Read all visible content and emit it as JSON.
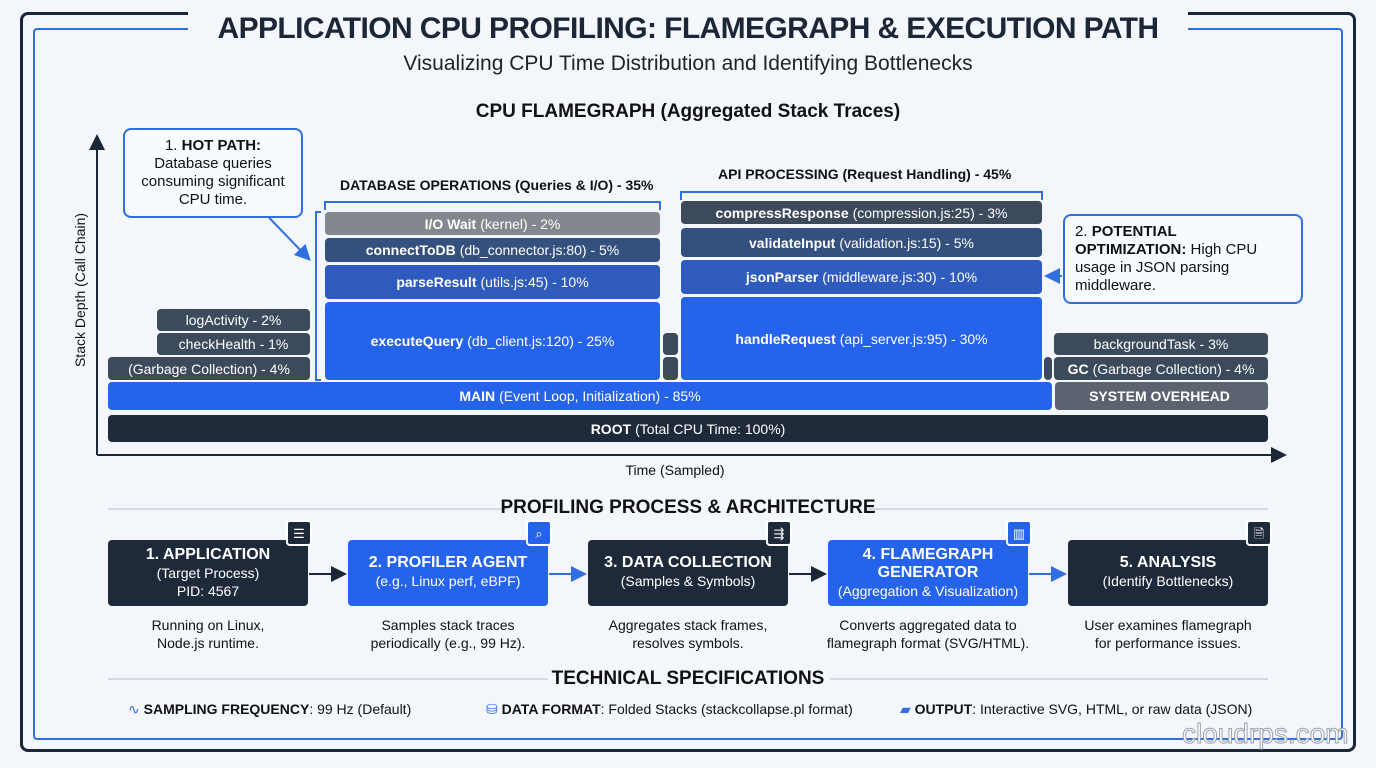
{
  "title": "APPLICATION CPU PROFILING: FLAMEGRAPH & EXECUTION PATH",
  "subtitle": "Visualizing CPU Time Distribution and Identifying Bottlenecks",
  "flamegraph": {
    "title": "CPU FLAMEGRAPH (Aggregated Stack Traces)",
    "y_axis": "Stack Depth (Call Chain)",
    "x_axis": "Time (Sampled)",
    "db_group": "DATABASE OPERATIONS (Queries & I/O) - 35%",
    "api_group": "API PROCESSING (Request Handling) - 45%",
    "frames": {
      "root": {
        "name": "ROOT",
        "detail": "(Total CPU Time: 100%)"
      },
      "main": {
        "name": "MAIN",
        "detail": "(Event Loop, Initialization) - 85%"
      },
      "sys": {
        "name": "SYSTEM OVERHEAD",
        "detail": ""
      },
      "gc_left": {
        "name": "",
        "detail": "(Garbage Collection) - 4%"
      },
      "check": {
        "name": "",
        "detail": "checkHealth - 1%"
      },
      "log": {
        "name": "",
        "detail": "logActivity - 2%"
      },
      "exec": {
        "name": "executeQuery",
        "detail": "(db_client.js:120) - 25%"
      },
      "parse": {
        "name": "parseResult",
        "detail": "(utils.js:45) - 10%"
      },
      "conn": {
        "name": "connectToDB",
        "detail": "(db_connector.js:80) - 5%"
      },
      "iowait": {
        "name": "I/O Wait",
        "detail": "(kernel) - 2%"
      },
      "handle": {
        "name": "handleRequest",
        "detail": "(api_server.js:95) - 30%"
      },
      "json": {
        "name": "jsonParser",
        "detail": "(middleware.js:30) - 10%"
      },
      "validate": {
        "name": "validateInput",
        "detail": "(validation.js:15) - 5%"
      },
      "compress": {
        "name": "compressResponse",
        "detail": "(compression.js:25) - 3%"
      },
      "bg": {
        "name": "",
        "detail": "backgroundTask - 3%"
      },
      "gc_right": {
        "name": "GC",
        "detail": "(Garbage Collection) - 4%"
      }
    },
    "callout1": {
      "bold": "HOT PATH:",
      "prefix": "1.",
      "text": "Database queries consuming significant CPU time."
    },
    "callout2": {
      "bold": "POTENTIAL OPTIMIZATION:",
      "prefix": "2.",
      "text": "High CPU usage in JSON parsing middleware."
    }
  },
  "process": {
    "title": "PROFILING PROCESS & ARCHITECTURE",
    "steps": [
      {
        "title": "1. APPLICATION",
        "sub": "(Target Process)",
        "sub2": "PID: 4567",
        "desc1": "Running on Linux,",
        "desc2": "Node.js runtime.",
        "icon": "server-icon"
      },
      {
        "title": "2. PROFILER AGENT",
        "sub": "(e.g., Linux perf, eBPF)",
        "sub2": "",
        "desc1": "Samples stack traces",
        "desc2": "periodically (e.g., 99 Hz).",
        "icon": "magnifier-chart-icon"
      },
      {
        "title": "3. DATA COLLECTION",
        "sub": "(Samples & Symbols)",
        "sub2": "",
        "desc1": "Aggregates stack frames,",
        "desc2": "resolves symbols.",
        "icon": "list-merge-icon"
      },
      {
        "title": "4. FLAMEGRAPH",
        "sub": "GENERATOR",
        "sub2": "(Aggregation & Visualization)",
        "desc1": "Converts aggregated data to",
        "desc2": "flamegraph format (SVG/HTML).",
        "icon": "bar-chart-icon"
      },
      {
        "title": "5. ANALYSIS",
        "sub": "(Identify Bottlenecks)",
        "sub2": "",
        "desc1": "User examines flamegraph",
        "desc2": "for performance issues.",
        "icon": "document-search-icon"
      }
    ]
  },
  "specs": {
    "title": "TECHNICAL SPECIFICATIONS",
    "items": [
      {
        "label": "SAMPLING FREQUENCY",
        "value": ": 99 Hz (Default)",
        "icon": "pulse-icon"
      },
      {
        "label": "DATA FORMAT",
        "value": ": Folded Stacks (stackcollapse.pl format)",
        "icon": "database-icon"
      },
      {
        "label": "OUTPUT",
        "value": ": Interactive SVG, HTML, or raw data (JSON)",
        "icon": "folder-icon"
      }
    ]
  },
  "watermark": "cloudrps.com",
  "colors": {
    "accent": "#2563eb",
    "dark": "#1e2a3a",
    "border": "#2f6fe0"
  }
}
